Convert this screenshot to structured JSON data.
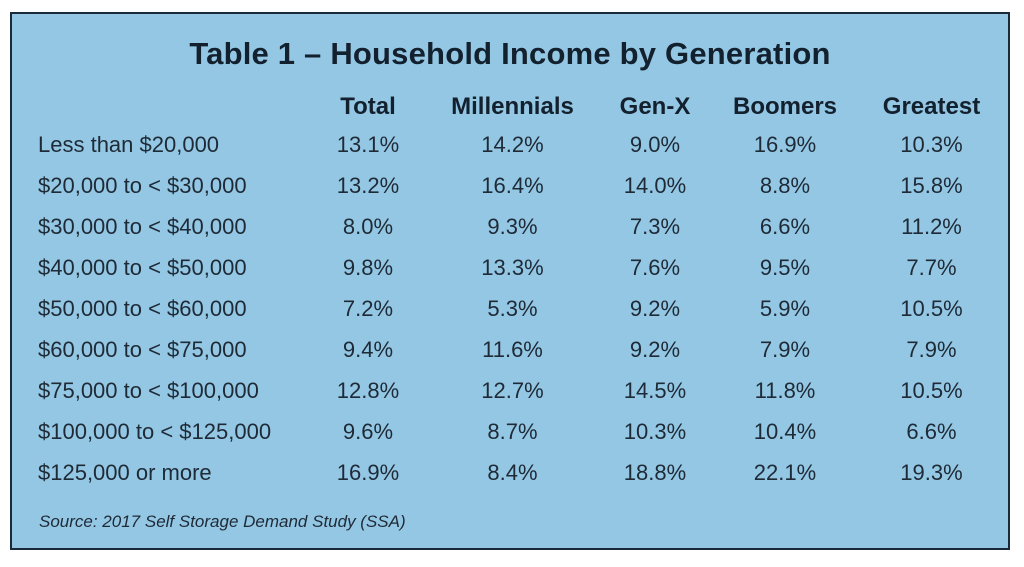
{
  "chart_data": {
    "type": "table",
    "title": "Table 1 – Household Income by Generation",
    "columns": [
      "",
      "Total",
      "Millennials",
      "Gen-X",
      "Boomers",
      "Greatest"
    ],
    "rows": [
      {
        "label": "Less than $20,000",
        "values": [
          "13.1%",
          "14.2%",
          "9.0%",
          "16.9%",
          "10.3%"
        ]
      },
      {
        "label": "$20,000 to < $30,000",
        "values": [
          "13.2%",
          "16.4%",
          "14.0%",
          "8.8%",
          "15.8%"
        ]
      },
      {
        "label": "$30,000 to < $40,000",
        "values": [
          "8.0%",
          "9.3%",
          "7.3%",
          "6.6%",
          "11.2%"
        ]
      },
      {
        "label": "$40,000 to < $50,000",
        "values": [
          "9.8%",
          "13.3%",
          "7.6%",
          "9.5%",
          "7.7%"
        ]
      },
      {
        "label": "$50,000 to < $60,000",
        "values": [
          "7.2%",
          "5.3%",
          "9.2%",
          "5.9%",
          "10.5%"
        ]
      },
      {
        "label": "$60,000 to < $75,000",
        "values": [
          "9.4%",
          "11.6%",
          "9.2%",
          "7.9%",
          "7.9%"
        ]
      },
      {
        "label": "$75,000 to < $100,000",
        "values": [
          "12.8%",
          "12.7%",
          "14.5%",
          "11.8%",
          "10.5%"
        ]
      },
      {
        "label": "$100,000 to < $125,000",
        "values": [
          "9.6%",
          "8.7%",
          "10.3%",
          "10.4%",
          "6.6%"
        ]
      },
      {
        "label": "$125,000 or more",
        "values": [
          "16.9%",
          "8.4%",
          "18.8%",
          "22.1%",
          "19.3%"
        ]
      }
    ],
    "source": "Source: 2017 Self Storage Demand Study (SSA)"
  },
  "colors": {
    "panel_background": "#94c7e4",
    "border": "#1b2a3a",
    "text": "#13202e"
  }
}
